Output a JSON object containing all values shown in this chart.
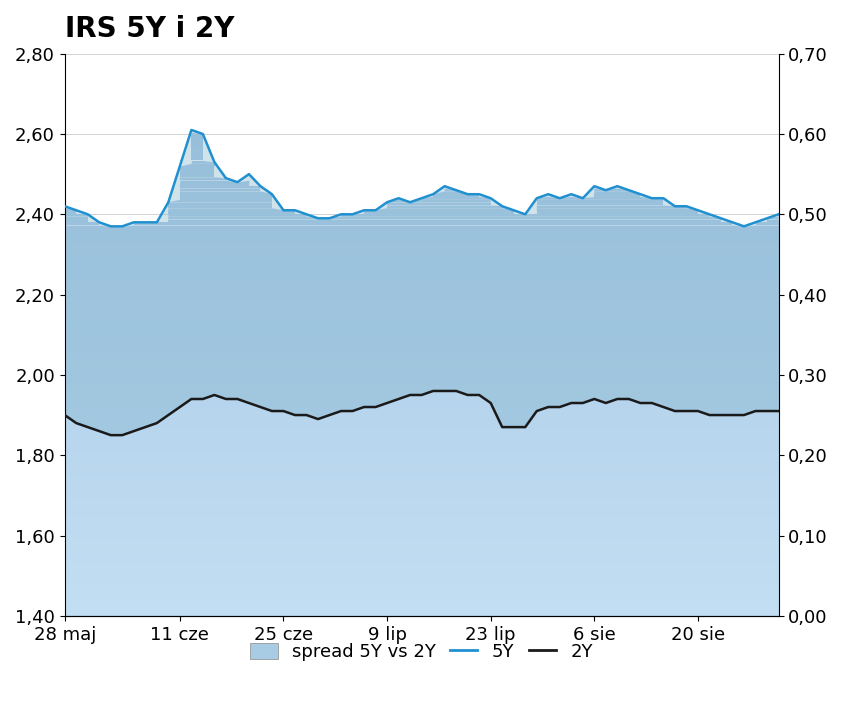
{
  "title": "IRS 5Y i 2Y",
  "ylim_left": [
    1.4,
    2.8
  ],
  "ylim_right": [
    0.0,
    0.7
  ],
  "yticks_left": [
    1.4,
    1.6,
    1.8,
    2.0,
    2.2,
    2.4,
    2.6,
    2.8
  ],
  "yticks_right": [
    0.0,
    0.1,
    0.2,
    0.3,
    0.4,
    0.5,
    0.6,
    0.7
  ],
  "xtick_labels": [
    "28 maj",
    "11 cze",
    "25 cze",
    "9 lip",
    "23 lip",
    "6 sie",
    "20 sie"
  ],
  "background_color": "#ffffff",
  "fill_main_color": "#a8cce4",
  "fill_spread_color": "#8ab2cc",
  "line_5y_color": "#2090d0",
  "line_2y_color": "#1a1a1a",
  "legend_labels": [
    "spread 5Y vs 2Y",
    "5Y",
    "2Y"
  ],
  "title_fontsize": 20,
  "tick_fontsize": 13,
  "xtick_positions": [
    0,
    10,
    19,
    28,
    37,
    46,
    55
  ],
  "y5y": [
    2.42,
    2.41,
    2.4,
    2.38,
    2.37,
    2.37,
    2.38,
    2.38,
    2.38,
    2.43,
    2.52,
    2.61,
    2.6,
    2.53,
    2.49,
    2.48,
    2.5,
    2.47,
    2.45,
    2.41,
    2.41,
    2.4,
    2.39,
    2.39,
    2.4,
    2.4,
    2.41,
    2.41,
    2.43,
    2.44,
    2.43,
    2.44,
    2.45,
    2.47,
    2.46,
    2.45,
    2.45,
    2.44,
    2.42,
    2.41,
    2.4,
    2.44,
    2.45,
    2.44,
    2.45,
    2.44,
    2.47,
    2.46,
    2.47,
    2.46,
    2.45,
    2.44,
    2.44,
    2.42,
    2.42,
    2.41,
    2.4,
    2.39,
    2.38,
    2.37,
    2.38,
    2.39,
    2.4
  ],
  "y2y": [
    1.9,
    1.88,
    1.87,
    1.86,
    1.85,
    1.85,
    1.86,
    1.87,
    1.88,
    1.9,
    1.92,
    1.94,
    1.94,
    1.95,
    1.94,
    1.94,
    1.93,
    1.92,
    1.91,
    1.91,
    1.9,
    1.9,
    1.89,
    1.9,
    1.91,
    1.91,
    1.92,
    1.92,
    1.93,
    1.94,
    1.95,
    1.95,
    1.96,
    1.96,
    1.96,
    1.95,
    1.95,
    1.93,
    1.87,
    1.87,
    1.87,
    1.91,
    1.92,
    1.92,
    1.93,
    1.93,
    1.94,
    1.93,
    1.94,
    1.94,
    1.93,
    1.93,
    1.92,
    1.91,
    1.91,
    1.91,
    1.9,
    1.9,
    1.9,
    1.9,
    1.91,
    1.91,
    1.91
  ]
}
